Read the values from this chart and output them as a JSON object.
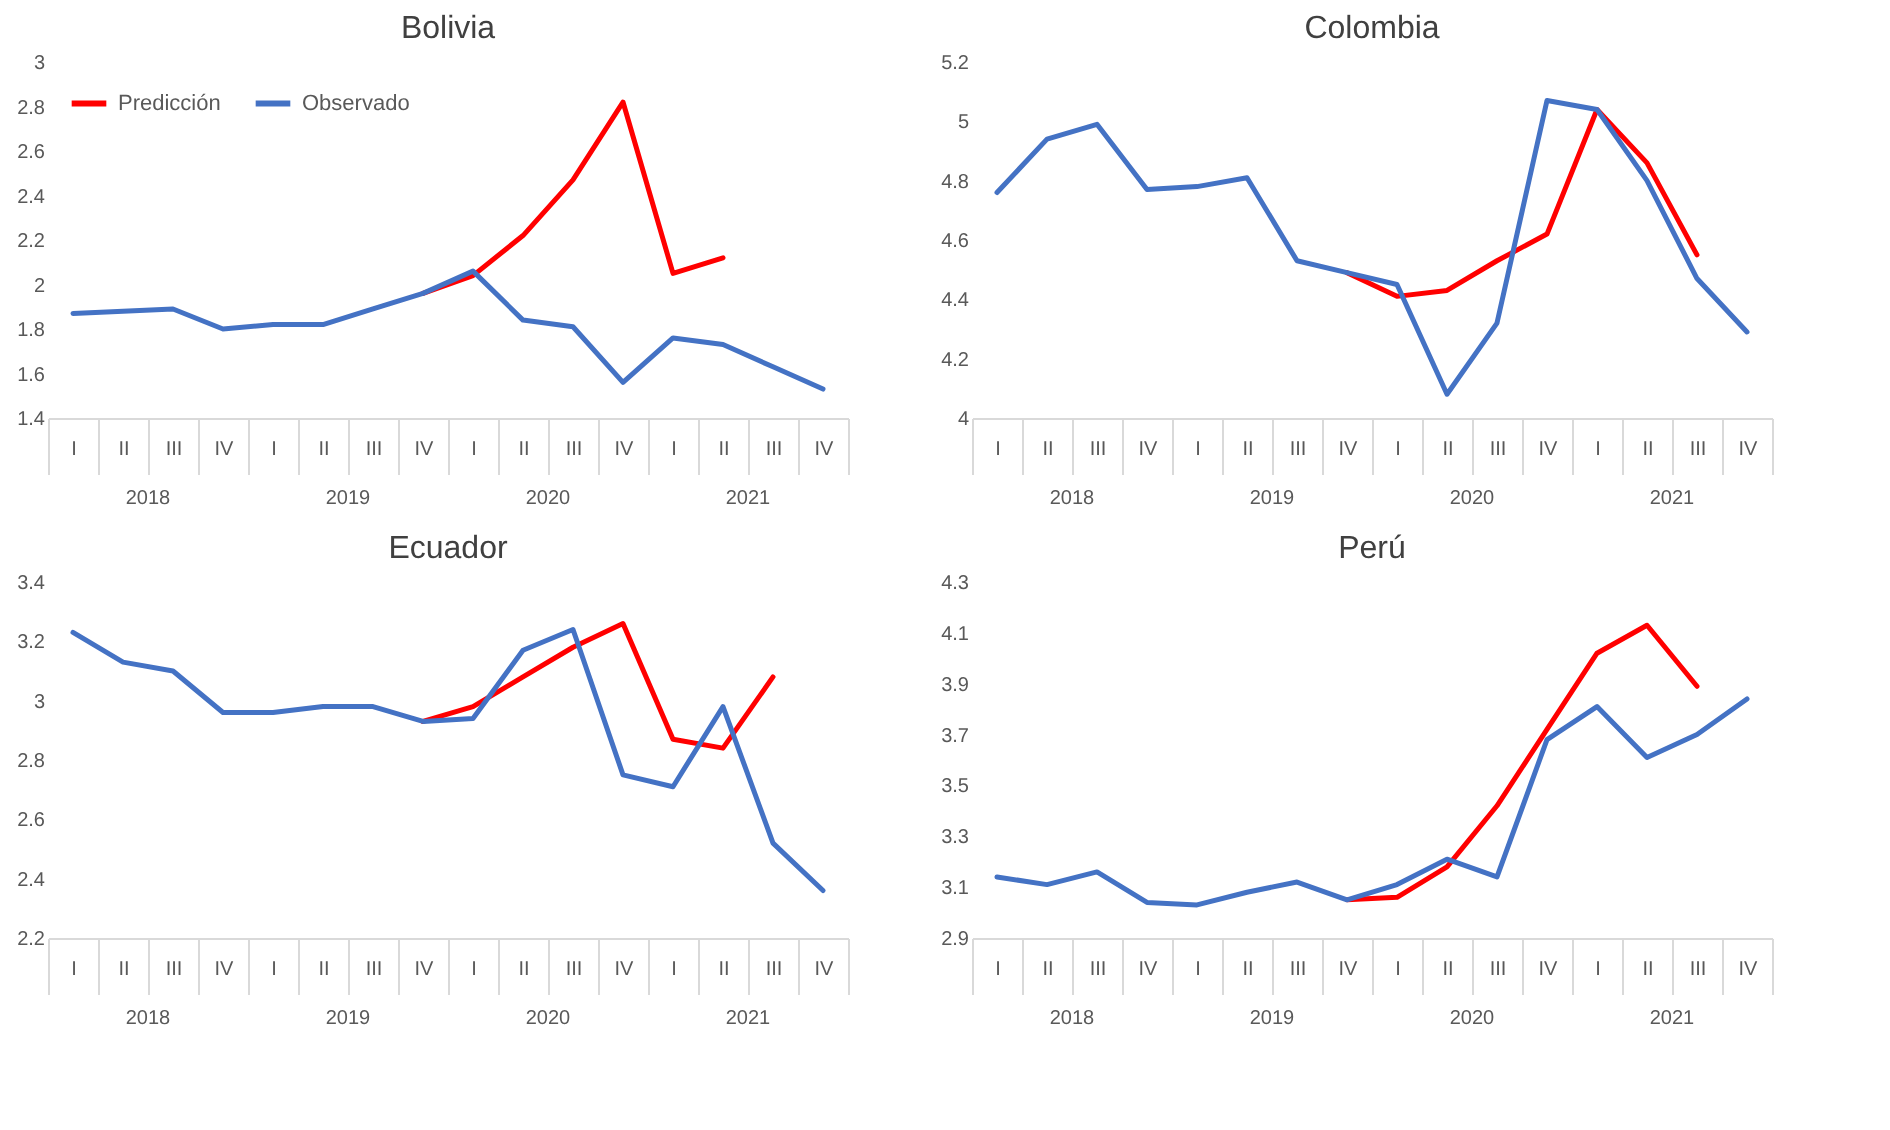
{
  "chart_data": [
    {
      "type": "line",
      "title": "Bolivia",
      "categories": [
        "I",
        "II",
        "III",
        "IV",
        "I",
        "II",
        "III",
        "IV",
        "I",
        "II",
        "III",
        "IV",
        "I",
        "II",
        "III",
        "IV"
      ],
      "annotations": [
        "2018",
        "2019",
        "2020",
        "2021"
      ],
      "ylim": [
        1.4,
        3
      ],
      "yticks": [
        1.4,
        1.6,
        1.8,
        2,
        2.2,
        2.4,
        2.6,
        2.8,
        3
      ],
      "legend": "top left",
      "grid": false,
      "series": [
        {
          "name": "Predicción",
          "color": "#ff0000",
          "values": [
            null,
            null,
            null,
            null,
            null,
            null,
            null,
            1.96,
            2.04,
            2.22,
            2.47,
            2.82,
            2.05,
            2.12,
            null,
            null
          ]
        },
        {
          "name": "Observado",
          "color": "#4472c4",
          "values": [
            1.87,
            1.88,
            1.89,
            1.8,
            1.82,
            1.82,
            1.89,
            1.96,
            2.06,
            1.84,
            1.81,
            1.56,
            1.76,
            1.73,
            1.63,
            1.53
          ]
        }
      ]
    },
    {
      "type": "line",
      "title": "Colombia",
      "categories": [
        "I",
        "II",
        "III",
        "IV",
        "I",
        "II",
        "III",
        "IV",
        "I",
        "II",
        "III",
        "IV",
        "I",
        "II",
        "III",
        "IV"
      ],
      "annotations": [
        "2018",
        "2019",
        "2020",
        "2021"
      ],
      "ylim": [
        4,
        5.2
      ],
      "yticks": [
        4,
        4.2,
        4.4,
        4.6,
        4.8,
        5,
        5.2
      ],
      "grid": false,
      "series": [
        {
          "color": "#ff0000",
          "values": [
            null,
            null,
            null,
            null,
            null,
            null,
            null,
            4.49,
            4.41,
            4.43,
            4.53,
            4.62,
            5.04,
            4.86,
            4.55,
            null
          ]
        },
        {
          "color": "#4472c4",
          "values": [
            4.76,
            4.94,
            4.99,
            4.77,
            4.78,
            4.81,
            4.53,
            4.49,
            4.45,
            4.08,
            4.32,
            5.07,
            5.04,
            4.8,
            4.47,
            4.29
          ]
        }
      ]
    },
    {
      "type": "line",
      "title": "Ecuador",
      "categories": [
        "I",
        "II",
        "III",
        "IV",
        "I",
        "II",
        "III",
        "IV",
        "I",
        "II",
        "III",
        "IV",
        "I",
        "II",
        "III",
        "IV"
      ],
      "annotations": [
        "2018",
        "2019",
        "2020",
        "2021"
      ],
      "ylim": [
        2.2,
        3.4
      ],
      "yticks": [
        2.2,
        2.4,
        2.6,
        2.8,
        3,
        3.2,
        3.4
      ],
      "grid": false,
      "series": [
        {
          "color": "#ff0000",
          "values": [
            null,
            null,
            null,
            null,
            null,
            null,
            null,
            2.93,
            2.98,
            3.08,
            3.18,
            3.26,
            2.87,
            2.84,
            3.08,
            null
          ]
        },
        {
          "color": "#4472c4",
          "values": [
            3.23,
            3.13,
            3.1,
            2.96,
            2.96,
            2.98,
            2.98,
            2.93,
            2.94,
            3.17,
            3.24,
            2.75,
            2.71,
            2.98,
            2.52,
            2.36
          ]
        }
      ]
    },
    {
      "type": "line",
      "title": "Perú",
      "categories": [
        "I",
        "II",
        "III",
        "IV",
        "I",
        "II",
        "III",
        "IV",
        "I",
        "II",
        "III",
        "IV",
        "I",
        "II",
        "III",
        "IV"
      ],
      "annotations": [
        "2018",
        "2019",
        "2020",
        "2021"
      ],
      "ylim": [
        2.9,
        4.3
      ],
      "yticks": [
        2.9,
        3.1,
        3.3,
        3.5,
        3.7,
        3.9,
        4.1,
        4.3
      ],
      "grid": false,
      "series": [
        {
          "color": "#ff0000",
          "values": [
            null,
            null,
            null,
            null,
            null,
            null,
            null,
            3.05,
            3.06,
            3.18,
            3.42,
            3.72,
            4.02,
            4.13,
            3.89,
            null
          ]
        },
        {
          "color": "#4472c4",
          "values": [
            3.14,
            3.11,
            3.16,
            3.04,
            3.03,
            3.08,
            3.12,
            3.05,
            3.11,
            3.21,
            3.14,
            3.68,
            3.81,
            3.61,
            3.7,
            3.84
          ]
        }
      ]
    }
  ]
}
